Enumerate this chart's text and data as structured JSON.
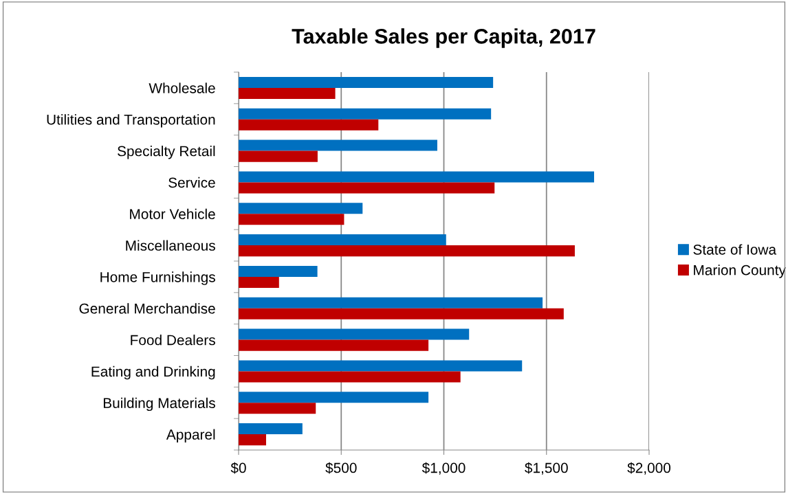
{
  "chart_data": {
    "type": "bar",
    "orientation": "horizontal",
    "title": "Taxable Sales per Capita, 2017",
    "categories": [
      "Wholesale",
      "Utilities and Transportation",
      "Specialty Retail",
      "Service",
      "Motor Vehicle",
      "Miscellaneous",
      "Home Furnishings",
      "General Merchandise",
      "Food Dealers",
      "Eating and Drinking",
      "Building Materials",
      "Apparel"
    ],
    "series": [
      {
        "name": "State of Iowa",
        "color": "#0070c0",
        "values": [
          1240,
          1230,
          968,
          1732,
          604,
          1011,
          384,
          1481,
          1123,
          1381,
          925,
          311
        ]
      },
      {
        "name": "Marion County",
        "color": "#c00000",
        "values": [
          471,
          681,
          385,
          1247,
          514,
          1638,
          197,
          1584,
          925,
          1081,
          376,
          134
        ]
      }
    ],
    "xlim": [
      0,
      2000
    ],
    "xticks": [
      {
        "value": 0,
        "label": "$0"
      },
      {
        "value": 500,
        "label": "$500"
      },
      {
        "value": 1000,
        "label": "$1,000"
      },
      {
        "value": 1500,
        "label": "$1,500"
      },
      {
        "value": 2000,
        "label": "$2,000"
      }
    ],
    "grid": "x",
    "legend": "right"
  }
}
